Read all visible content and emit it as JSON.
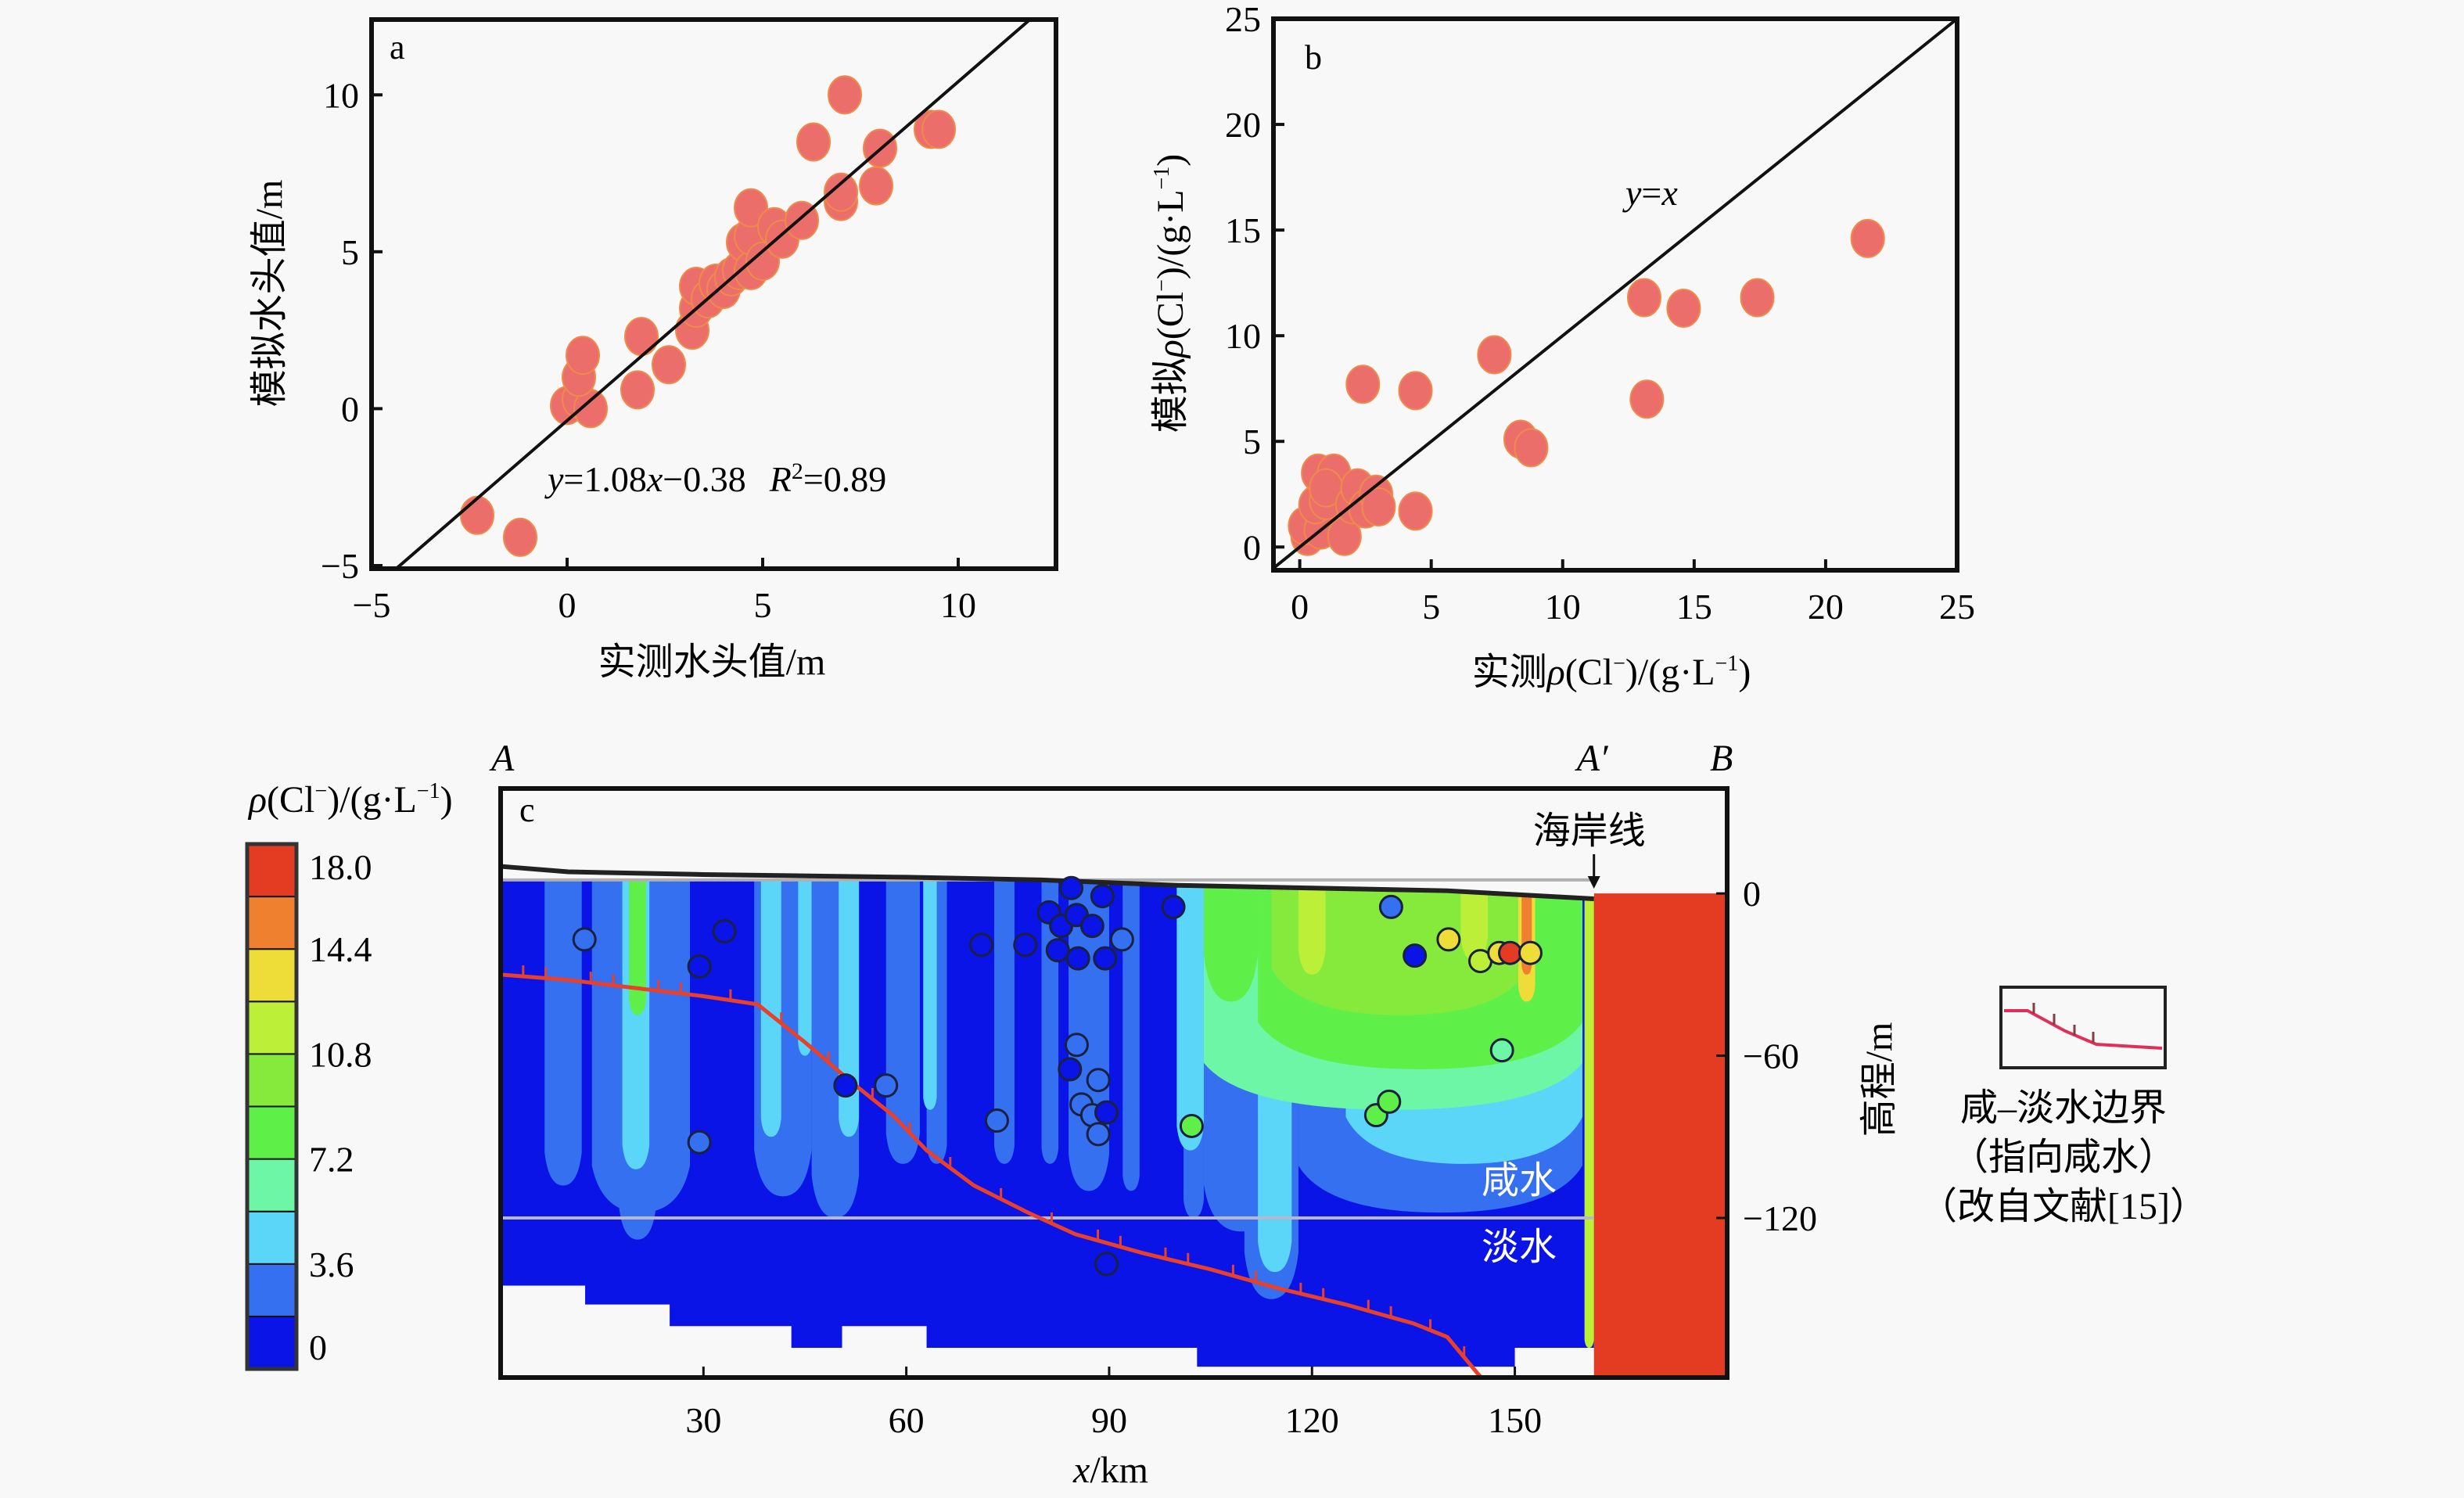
{
  "chart_data": [
    {
      "id": "a",
      "type": "scatter",
      "panel_label": "a",
      "title": "",
      "xlabel": "实测水头值/m",
      "ylabel": "模拟水头值/m",
      "xlim": [
        -5,
        12.5
      ],
      "ylim": [
        -5.1,
        12.4
      ],
      "xticks": [
        -5,
        0,
        5,
        10
      ],
      "yticks": [
        -5,
        0,
        5,
        10
      ],
      "xtick_labels": [
        "−5",
        "0",
        "5",
        "10"
      ],
      "ytick_labels": [
        "−5",
        "0",
        "5",
        "10"
      ],
      "grid": false,
      "marker_color": "#ec6e6b",
      "reference_line": {
        "slope": 1.08,
        "intercept": -0.38,
        "color": "#111111"
      },
      "annotation": {
        "y_part": "y",
        "eq_part": "=1.08",
        "x_part": "x",
        "tail": "−0.38",
        "r_part": "R",
        "r_sup": "2",
        "r_tail": "=0.89"
      },
      "points": [
        [
          -2.3,
          -3.4
        ],
        [
          -1.2,
          -4.1
        ],
        [
          0.0,
          0.1
        ],
        [
          0.3,
          0.3
        ],
        [
          0.6,
          0.0
        ],
        [
          0.3,
          1.0
        ],
        [
          0.4,
          1.7
        ],
        [
          1.8,
          0.6
        ],
        [
          1.9,
          2.3
        ],
        [
          2.6,
          1.4
        ],
        [
          3.2,
          2.5
        ],
        [
          3.3,
          3.2
        ],
        [
          3.3,
          3.9
        ],
        [
          3.6,
          3.5
        ],
        [
          3.8,
          4.0
        ],
        [
          4.0,
          3.8
        ],
        [
          4.2,
          4.2
        ],
        [
          4.4,
          4.4
        ],
        [
          4.5,
          5.3
        ],
        [
          4.7,
          4.4
        ],
        [
          4.7,
          5.5
        ],
        [
          4.7,
          6.4
        ],
        [
          5.0,
          4.7
        ],
        [
          5.3,
          5.8
        ],
        [
          5.5,
          5.4
        ],
        [
          6.0,
          6.0
        ],
        [
          6.3,
          8.5
        ],
        [
          7.0,
          6.6
        ],
        [
          7.0,
          6.9
        ],
        [
          7.1,
          10.0
        ],
        [
          7.9,
          7.1
        ],
        [
          8.0,
          8.3
        ],
        [
          9.3,
          8.9
        ],
        [
          9.5,
          8.9
        ]
      ]
    },
    {
      "id": "b",
      "type": "scatter",
      "panel_label": "b",
      "title": "",
      "xlabel": "实测ρ(Cl⁻)/(g·L⁻¹)",
      "xlabel_parts": {
        "prefix": "实测",
        "rho": "ρ",
        "rest": "(Cl",
        "sup1": "−",
        "mid": ")/(g·L",
        "sup2": "−1",
        "end": ")"
      },
      "ylabel": "模拟ρ(Cl⁻)/(g·L⁻¹)",
      "ylabel_parts": {
        "prefix": "模拟",
        "rho": "ρ",
        "rest": "(Cl",
        "sup1": "−",
        "mid": ")/(g·L",
        "sup2": "−1",
        "end": ")"
      },
      "xlim": [
        -1,
        25
      ],
      "ylim": [
        -1.1,
        25
      ],
      "xticks": [
        0,
        5,
        10,
        15,
        20,
        25
      ],
      "yticks": [
        0,
        5,
        10,
        15,
        20,
        25
      ],
      "xtick_labels": [
        "0",
        "5",
        "10",
        "15",
        "20",
        "25"
      ],
      "ytick_labels": [
        "0",
        "5",
        "10",
        "15",
        "20",
        "25"
      ],
      "grid": false,
      "marker_color": "#ec6e6b",
      "reference_line": {
        "slope": 1,
        "intercept": 0,
        "color": "#111111",
        "label": "y=x"
      },
      "line_label_parts": {
        "y": "y",
        "eq": "=",
        "x": "x"
      },
      "points": [
        [
          0.3,
          0.5
        ],
        [
          0.5,
          1.2
        ],
        [
          0.2,
          1.0
        ],
        [
          0.8,
          0.8
        ],
        [
          0.6,
          2.0
        ],
        [
          1.0,
          2.2
        ],
        [
          0.7,
          3.5
        ],
        [
          1.3,
          3.5
        ],
        [
          1.0,
          2.8
        ],
        [
          1.7,
          0.5
        ],
        [
          2.0,
          2.0
        ],
        [
          2.2,
          2.8
        ],
        [
          2.5,
          1.8
        ],
        [
          2.9,
          2.5
        ],
        [
          3.0,
          1.9
        ],
        [
          4.4,
          1.7
        ],
        [
          2.4,
          7.7
        ],
        [
          4.4,
          7.4
        ],
        [
          7.4,
          9.1
        ],
        [
          8.4,
          5.1
        ],
        [
          8.8,
          4.7
        ],
        [
          13.1,
          11.8
        ],
        [
          13.2,
          7.0
        ],
        [
          14.6,
          11.3
        ],
        [
          17.4,
          11.8
        ],
        [
          21.6,
          14.6
        ]
      ]
    },
    {
      "id": "c",
      "type": "heatmap",
      "panel_label": "c",
      "title": "",
      "xlabel": "x/km",
      "xlabel_parts": {
        "var": "x",
        "unit": "/km"
      },
      "ylabel": "高程/m",
      "xlim": [
        0,
        181.4
      ],
      "ylim": [
        -179,
        38.8
      ],
      "xticks": [
        30,
        60,
        90,
        120,
        150
      ],
      "xtick_labels": [
        "30",
        "60",
        "90",
        "120",
        "150"
      ],
      "yticks": [
        0,
        -60,
        -120
      ],
      "ytick_labels": [
        "0",
        "−60",
        "−120"
      ],
      "section_labels": {
        "A": "A",
        "A_prime": "A′",
        "B": "B"
      },
      "section_positions_km": {
        "A": 0,
        "A_prime": 161.7,
        "B": 181.4
      },
      "coastline_label": "海岸线",
      "coastline_km": 161.7,
      "region_labels": {
        "saline": "咸水",
        "fresh": "淡水"
      },
      "aquifer_boundary_depth_m": -120,
      "top_layer_line_m": 5,
      "colorbar": {
        "title_parts": {
          "rho": "ρ",
          "rest": "(Cl",
          "sup1": "−",
          "mid": ")/(g·L",
          "sup2": "−1",
          "end": ")"
        },
        "title": "ρ(Cl⁻)/(g·L⁻¹)",
        "levels": [
          0,
          1.8,
          3.6,
          5.4,
          7.2,
          9.0,
          10.8,
          12.6,
          14.4,
          16.2,
          18.0
        ],
        "tick_values": [
          0,
          3.6,
          7.2,
          10.8,
          14.4,
          18.0
        ],
        "tick_labels": [
          "0",
          "3.6",
          "7.2",
          "10.8",
          "14.4",
          "18.0"
        ],
        "colors": [
          "#0a14e6",
          "#3470f0",
          "#5cd6f8",
          "#6cf6a6",
          "#5ef048",
          "#86ea3c",
          "#bcf038",
          "#eedc38",
          "#ee8030",
          "#e43c22"
        ]
      },
      "ground_surface": [
        [
          0,
          10
        ],
        [
          10,
          8
        ],
        [
          30,
          7
        ],
        [
          60,
          6
        ],
        [
          80,
          5
        ],
        [
          100,
          3
        ],
        [
          120,
          2
        ],
        [
          140,
          1
        ],
        [
          161.7,
          -2
        ]
      ],
      "base_domain_steps": [
        [
          0,
          -145
        ],
        [
          12.5,
          -145
        ],
        [
          12.5,
          -152
        ],
        [
          25,
          -152
        ],
        [
          25,
          -160
        ],
        [
          43,
          -160
        ],
        [
          43,
          -168
        ],
        [
          50.5,
          -168
        ],
        [
          50.5,
          -160
        ],
        [
          63,
          -160
        ],
        [
          63,
          -168
        ],
        [
          103,
          -168
        ],
        [
          103,
          -175
        ],
        [
          150,
          -175
        ],
        [
          150,
          -168
        ],
        [
          161.7,
          -168
        ]
      ],
      "background_layers": [
        {
          "from_m": 5,
          "to_m": -120,
          "x_from": 0,
          "x_to": 161.7,
          "class": 0
        },
        {
          "from_m": -120,
          "to_m": -175,
          "x_from": 0,
          "x_to": 161.7,
          "class": 0
        }
      ],
      "plumes": [
        {
          "x0": 6.5,
          "x1": 12,
          "top": 5,
          "bottom": -108,
          "class": 1
        },
        {
          "x0": 13.5,
          "x1": 28,
          "top": 5,
          "bottom": -118,
          "class": 1
        },
        {
          "x0": 17.5,
          "x1": 23,
          "top": 5,
          "bottom": -128,
          "class": 1
        },
        {
          "x0": 18,
          "x1": 22,
          "top": 5,
          "bottom": -102,
          "class": 2
        },
        {
          "x0": 19,
          "x1": 21.5,
          "top": 5,
          "bottom": -45,
          "class": 4
        },
        {
          "x0": 37.5,
          "x1": 46,
          "top": 5,
          "bottom": -112,
          "class": 1
        },
        {
          "x0": 46,
          "x1": 53,
          "top": 5,
          "bottom": -120,
          "class": 1
        },
        {
          "x0": 38.5,
          "x1": 41.5,
          "top": 5,
          "bottom": -90,
          "class": 2
        },
        {
          "x0": 44,
          "x1": 46,
          "top": 5,
          "bottom": -60,
          "class": 2
        },
        {
          "x0": 50,
          "x1": 53,
          "top": 5,
          "bottom": -90,
          "class": 2
        },
        {
          "x0": 57,
          "x1": 62,
          "top": 5,
          "bottom": -100,
          "class": 1
        },
        {
          "x0": 63,
          "x1": 66,
          "top": 5,
          "bottom": -100,
          "class": 1
        },
        {
          "x0": 62.5,
          "x1": 64.5,
          "top": 5,
          "bottom": -80,
          "class": 2
        },
        {
          "x0": 73,
          "x1": 76,
          "top": 5,
          "bottom": -100,
          "class": 1
        },
        {
          "x0": 80,
          "x1": 82.5,
          "top": 5,
          "bottom": -100,
          "class": 1
        },
        {
          "x0": 84,
          "x1": 90,
          "top": 5,
          "bottom": -110,
          "class": 1
        },
        {
          "x0": 92,
          "x1": 94.5,
          "top": 5,
          "bottom": -110,
          "class": 1
        },
        {
          "x0": 101,
          "x1": 104,
          "top": 5,
          "bottom": -120,
          "class": 1
        },
        {
          "x0": 104,
          "x1": 115,
          "top": 5,
          "bottom": -125,
          "class": 1
        },
        {
          "x0": 110,
          "x1": 118,
          "top": 5,
          "bottom": -150,
          "class": 1
        },
        {
          "x0": 112,
          "x1": 117,
          "top": 5,
          "bottom": -140,
          "class": 2
        },
        {
          "x0": 118,
          "x1": 160,
          "top": 5,
          "bottom": -118,
          "class": 1
        },
        {
          "x0": 125,
          "x1": 160,
          "top": 5,
          "bottom": -100,
          "class": 2
        },
        {
          "x0": 100,
          "x1": 104,
          "top": 5,
          "bottom": -95,
          "class": 2
        },
        {
          "x0": 104,
          "x1": 160,
          "top": 3,
          "bottom": -80,
          "class": 3
        },
        {
          "x0": 104,
          "x1": 112,
          "top": 3,
          "bottom": -40,
          "class": 4
        },
        {
          "x0": 112,
          "x1": 160,
          "top": 3,
          "bottom": -65,
          "class": 4
        },
        {
          "x0": 114,
          "x1": 152,
          "top": 3,
          "bottom": -45,
          "class": 5
        },
        {
          "x0": 118,
          "x1": 122,
          "top": 3,
          "bottom": -30,
          "class": 6
        },
        {
          "x0": 142,
          "x1": 146,
          "top": 3,
          "bottom": -25,
          "class": 6
        },
        {
          "x0": 150.5,
          "x1": 153,
          "top": 3,
          "bottom": -40,
          "class": 7
        },
        {
          "x0": 151,
          "x1": 152.5,
          "top": 3,
          "bottom": -30,
          "class": 8
        },
        {
          "x0": 160.3,
          "x1": 161.7,
          "top": 3,
          "bottom": -168,
          "class": 6
        }
      ],
      "sea_region": {
        "x0": 161.7,
        "x1": 181.4,
        "top": 0,
        "bottom": -179,
        "class": 9
      },
      "boundary_line": {
        "color": "#e8402a",
        "points": [
          [
            0,
            -30
          ],
          [
            10,
            -32
          ],
          [
            20,
            -35
          ],
          [
            30,
            -38
          ],
          [
            38,
            -41
          ],
          [
            45,
            -55
          ],
          [
            52,
            -70
          ],
          [
            58,
            -82
          ],
          [
            63,
            -95
          ],
          [
            70,
            -108
          ],
          [
            78,
            -118
          ],
          [
            85,
            -126
          ],
          [
            95,
            -133
          ],
          [
            105,
            -139
          ],
          [
            115,
            -146
          ],
          [
            125,
            -152
          ],
          [
            135,
            -159
          ],
          [
            140,
            -164
          ],
          [
            145,
            -179
          ]
        ]
      },
      "observation_points": [
        {
          "x": 12.4,
          "z": -17,
          "class": 1
        },
        {
          "x": 29.4,
          "z": -27,
          "class": 0
        },
        {
          "x": 29.4,
          "z": -92,
          "class": 1
        },
        {
          "x": 33.1,
          "z": -14,
          "class": 0
        },
        {
          "x": 51.0,
          "z": -71,
          "class": 0
        },
        {
          "x": 57.0,
          "z": -71,
          "class": 1
        },
        {
          "x": 71.1,
          "z": -19,
          "class": 0
        },
        {
          "x": 73.4,
          "z": -84,
          "class": 1
        },
        {
          "x": 77.6,
          "z": -19,
          "class": 0
        },
        {
          "x": 81.1,
          "z": -7,
          "class": 0
        },
        {
          "x": 84.4,
          "z": 2,
          "class": 0
        },
        {
          "x": 89.0,
          "z": -1,
          "class": 0
        },
        {
          "x": 82.9,
          "z": -12,
          "class": 0
        },
        {
          "x": 85.2,
          "z": -8,
          "class": 0
        },
        {
          "x": 87.5,
          "z": -12,
          "class": 0
        },
        {
          "x": 82.4,
          "z": -21,
          "class": 0
        },
        {
          "x": 85.4,
          "z": -24,
          "class": 0
        },
        {
          "x": 89.4,
          "z": -24,
          "class": 0
        },
        {
          "x": 91.9,
          "z": -17,
          "class": 1
        },
        {
          "x": 85.2,
          "z": -56,
          "class": 1
        },
        {
          "x": 84.2,
          "z": -65,
          "class": 0
        },
        {
          "x": 88.4,
          "z": -69,
          "class": 1
        },
        {
          "x": 85.9,
          "z": -78,
          "class": 1
        },
        {
          "x": 87.5,
          "z": -82,
          "class": 1
        },
        {
          "x": 89.6,
          "z": -81,
          "class": 0
        },
        {
          "x": 88.4,
          "z": -89,
          "class": 1
        },
        {
          "x": 99.5,
          "z": -5,
          "class": 0
        },
        {
          "x": 89.6,
          "z": -137,
          "class": 0
        },
        {
          "x": 102.2,
          "z": -86,
          "class": 4
        },
        {
          "x": 131.7,
          "z": -5,
          "class": 1
        },
        {
          "x": 135.2,
          "z": -23,
          "class": 0
        },
        {
          "x": 140.2,
          "z": -17,
          "class": 7
        },
        {
          "x": 144.9,
          "z": -25,
          "class": 6
        },
        {
          "x": 147.7,
          "z": -22,
          "class": 7
        },
        {
          "x": 149.3,
          "z": -22,
          "class": 9
        },
        {
          "x": 152.3,
          "z": -22,
          "class": 7
        },
        {
          "x": 148.1,
          "z": -58,
          "class": 3
        },
        {
          "x": 129.5,
          "z": -82,
          "class": 4
        },
        {
          "x": 131.4,
          "z": -77,
          "class": 4
        }
      ],
      "legend": {
        "label_line1": "咸–淡水边界",
        "label_line2": "（指向咸水）",
        "label_line3": "（改自文献[15]）"
      }
    }
  ]
}
